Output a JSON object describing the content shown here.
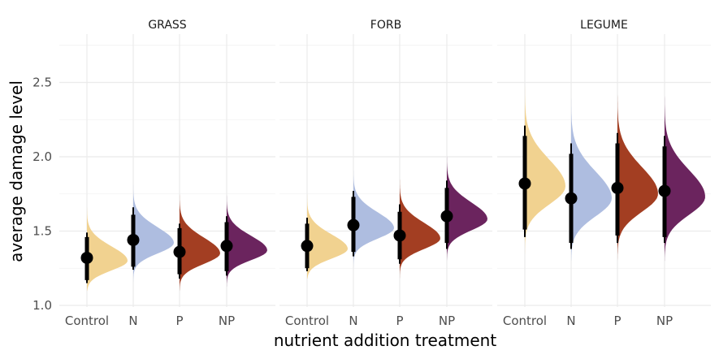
{
  "chart_data": {
    "type": "violin",
    "xlabel": "nutrient addition treatment",
    "ylabel": "average damage level",
    "ylim": [
      1.0,
      2.8
    ],
    "yticks": [
      1.0,
      1.5,
      2.0,
      2.5
    ],
    "ytick_labels": [
      "1.0",
      "1.5",
      "2.0",
      "2.5"
    ],
    "categories": [
      "Control",
      "N",
      "P",
      "NP"
    ],
    "colors": {
      "Control": "#f1d290",
      "N": "#aebde0",
      "P": "#a33e22",
      "NP": "#6b245e"
    },
    "grid": true,
    "legend": "none",
    "facets": [
      {
        "title": "GRASS",
        "groups": [
          {
            "treatment": "Control",
            "mean": 1.32,
            "thick": [
              1.17,
              1.46
            ],
            "thin": [
              1.15,
              1.49
            ],
            "min": 1.1,
            "max": 1.75,
            "mode": 1.3,
            "sd": 0.065
          },
          {
            "treatment": "N",
            "mean": 1.44,
            "thick": [
              1.26,
              1.61
            ],
            "thin": [
              1.24,
              1.66
            ],
            "min": 1.16,
            "max": 1.95,
            "mode": 1.42,
            "sd": 0.07
          },
          {
            "treatment": "P",
            "mean": 1.36,
            "thick": [
              1.21,
              1.52
            ],
            "thin": [
              1.18,
              1.55
            ],
            "min": 1.1,
            "max": 1.85,
            "mode": 1.35,
            "sd": 0.07
          },
          {
            "treatment": "NP",
            "mean": 1.4,
            "thick": [
              1.23,
              1.56
            ],
            "thin": [
              1.2,
              1.6
            ],
            "min": 1.12,
            "max": 1.9,
            "mode": 1.37,
            "sd": 0.065
          }
        ]
      },
      {
        "title": "FORB",
        "groups": [
          {
            "treatment": "Control",
            "mean": 1.4,
            "thick": [
              1.25,
              1.55
            ],
            "thin": [
              1.23,
              1.59
            ],
            "min": 1.18,
            "max": 1.75,
            "mode": 1.38,
            "sd": 0.065
          },
          {
            "treatment": "N",
            "mean": 1.54,
            "thick": [
              1.36,
              1.73
            ],
            "thin": [
              1.33,
              1.77
            ],
            "min": 1.25,
            "max": 1.95,
            "mode": 1.52,
            "sd": 0.07
          },
          {
            "treatment": "P",
            "mean": 1.47,
            "thick": [
              1.31,
              1.63
            ],
            "thin": [
              1.28,
              1.68
            ],
            "min": 1.18,
            "max": 1.9,
            "mode": 1.45,
            "sd": 0.07
          },
          {
            "treatment": "NP",
            "mean": 1.6,
            "thick": [
              1.42,
              1.79
            ],
            "thin": [
              1.38,
              1.84
            ],
            "min": 1.3,
            "max": 2.15,
            "mode": 1.58,
            "sd": 0.075
          }
        ]
      },
      {
        "title": "LEGUME",
        "groups": [
          {
            "treatment": "Control",
            "mean": 1.82,
            "thick": [
              1.51,
              2.14
            ],
            "thin": [
              1.46,
              2.21
            ],
            "min": 1.3,
            "max": 2.5,
            "mode": 1.8,
            "sd": 0.12
          },
          {
            "treatment": "N",
            "mean": 1.72,
            "thick": [
              1.42,
              2.02
            ],
            "thin": [
              1.38,
              2.09
            ],
            "min": 1.3,
            "max": 2.4,
            "mode": 1.72,
            "sd": 0.12
          },
          {
            "treatment": "P",
            "mean": 1.79,
            "thick": [
              1.47,
              2.09
            ],
            "thin": [
              1.42,
              2.16
            ],
            "min": 1.3,
            "max": 2.5,
            "mode": 1.75,
            "sd": 0.12
          },
          {
            "treatment": "NP",
            "mean": 1.77,
            "thick": [
              1.46,
              2.07
            ],
            "thin": [
              1.42,
              2.14
            ],
            "min": 1.3,
            "max": 2.45,
            "mode": 1.73,
            "sd": 0.12
          }
        ]
      }
    ]
  }
}
